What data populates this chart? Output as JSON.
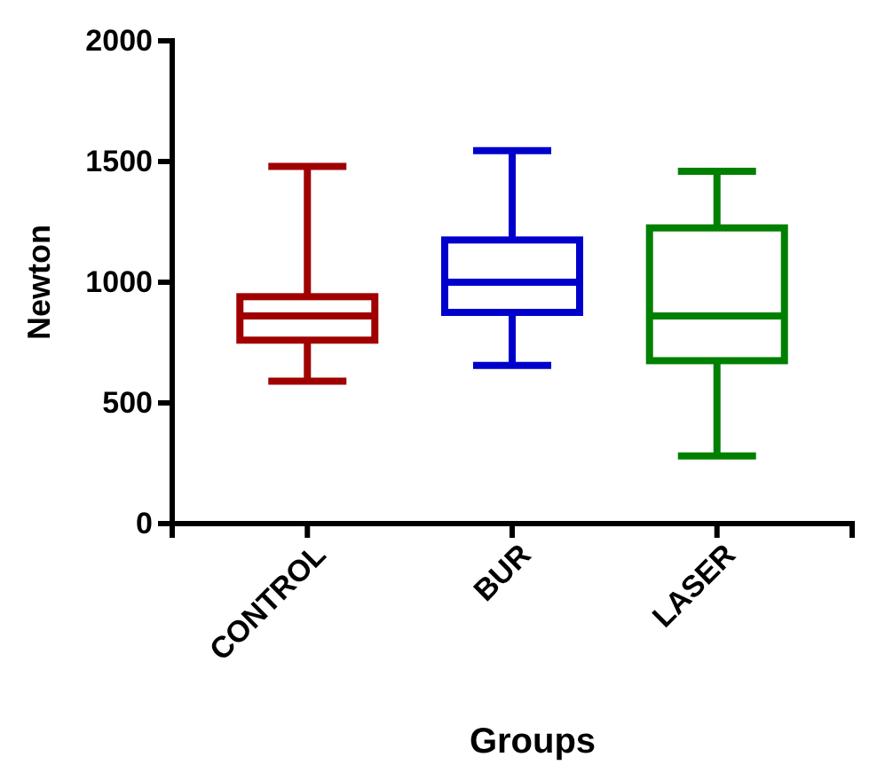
{
  "chart_data": {
    "type": "box",
    "xlabel": "Groups",
    "ylabel": "Newton",
    "categories": [
      "CONTROL",
      "BUR",
      "LASER"
    ],
    "colors": [
      "#a00000",
      "#0000cc",
      "#008000"
    ],
    "boxes": [
      {
        "low": 590,
        "q1": 760,
        "median": 860,
        "q3": 940,
        "high": 1480
      },
      {
        "low": 655,
        "q1": 875,
        "median": 1000,
        "q3": 1175,
        "high": 1545
      },
      {
        "low": 280,
        "q1": 675,
        "median": 860,
        "q3": 1225,
        "high": 1460
      }
    ],
    "ylim": [
      0,
      2000
    ],
    "yticks": [
      0,
      500,
      1000,
      1500,
      2000
    ]
  }
}
